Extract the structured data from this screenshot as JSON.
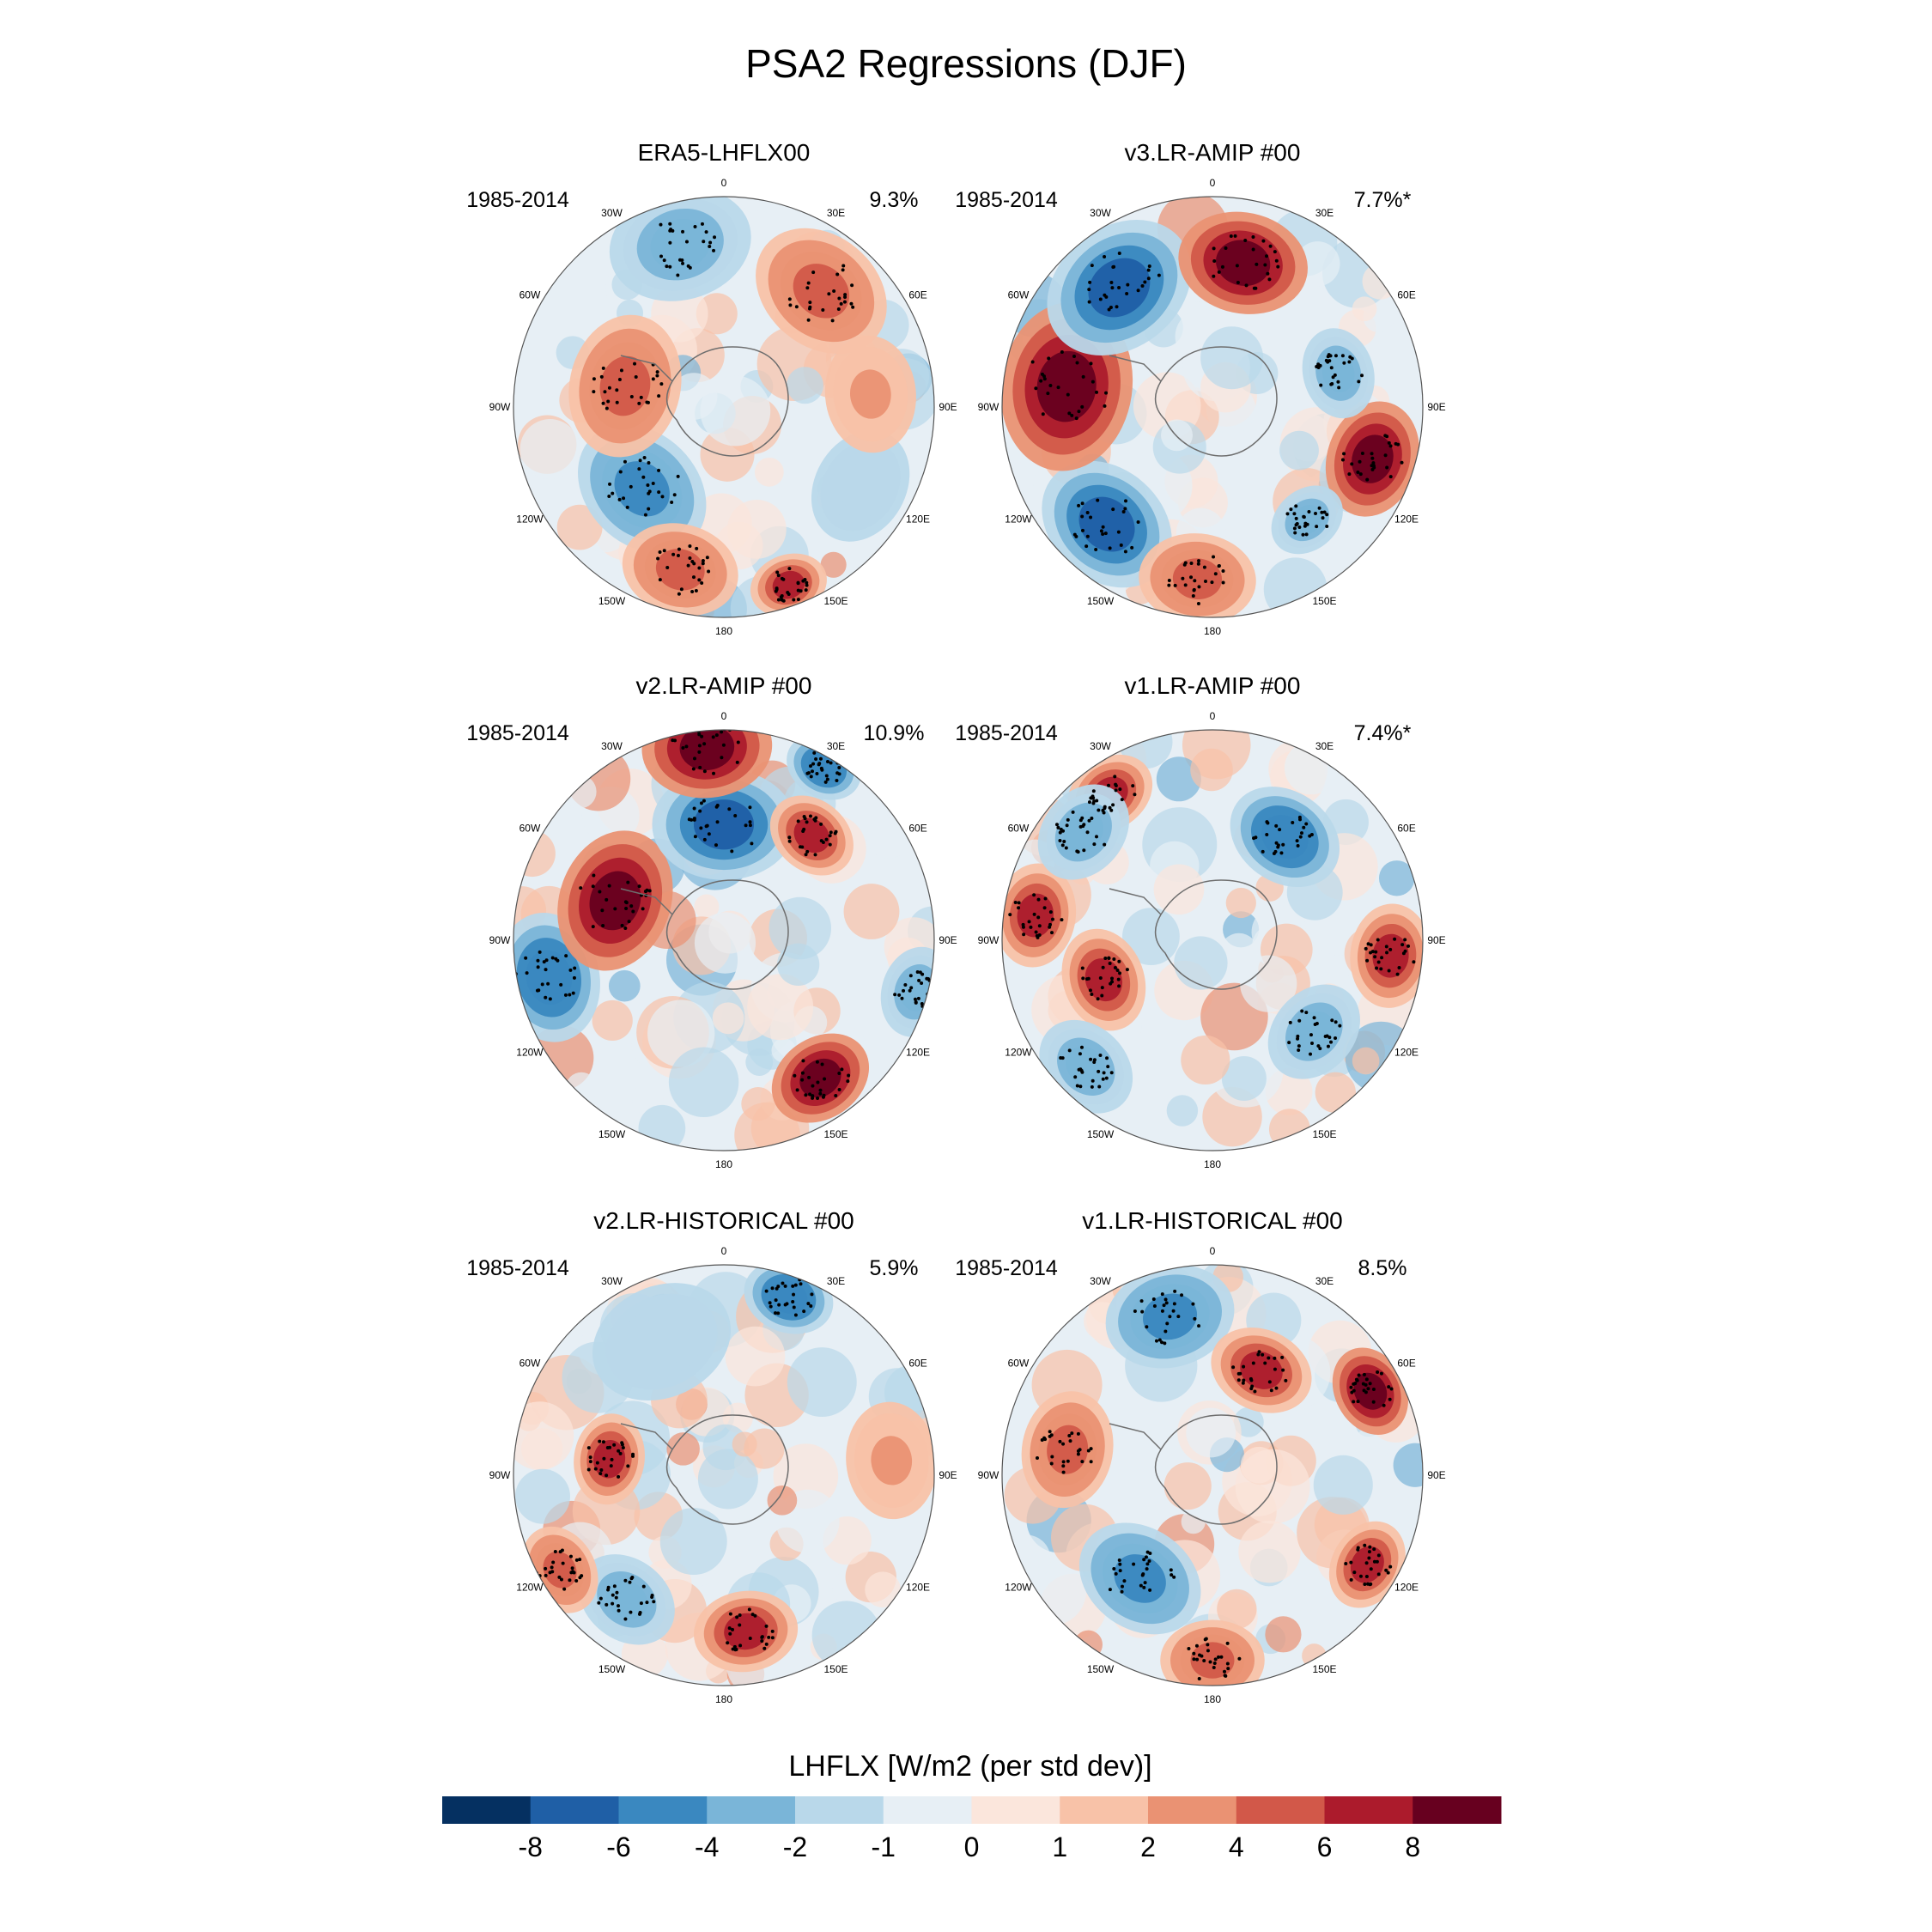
{
  "figure": {
    "title": "PSA2 Regressions (DJF)"
  },
  "colors": {
    "levels": [
      "#053061",
      "#1f5fa6",
      "#3a88c0",
      "#7ab5d8",
      "#b9d8ea",
      "#e7eff5",
      "#fbe6dc",
      "#f8c2a8",
      "#ea9273",
      "#d25849",
      "#ac1b2c",
      "#67001f"
    ],
    "outline": "#555555",
    "coast": "#6e6e6e",
    "stipple": "#000000"
  },
  "lon_labels": [
    "0",
    "30E",
    "60E",
    "90E",
    "120E",
    "150E",
    "180",
    "150W",
    "120W",
    "90W",
    "60W",
    "30W"
  ],
  "panels": [
    {
      "title": "ERA5-LHFLX00",
      "period": "1985-2014",
      "variance": "9.3%",
      "anomalies": [
        {
          "lon": 315,
          "r": 0.55,
          "value": -5,
          "size": 0.22
        },
        {
          "lon": 258,
          "r": 0.48,
          "value": 5,
          "size": 0.22
        },
        {
          "lon": 195,
          "r": 0.8,
          "value": -4,
          "size": 0.22
        },
        {
          "lon": 140,
          "r": 0.72,
          "value": 4,
          "size": 0.22
        },
        {
          "lon": 20,
          "r": 0.9,
          "value": 6,
          "size": 0.12
        },
        {
          "lon": 345,
          "r": 0.8,
          "value": 4,
          "size": 0.18
        },
        {
          "lon": 60,
          "r": 0.75,
          "value": -2,
          "size": 0.18
        },
        {
          "lon": 95,
          "r": 0.7,
          "value": 2,
          "size": 0.18
        }
      ]
    },
    {
      "title": "v3.LR-AMIP  #00",
      "period": "1985-2014",
      "variance": "7.7%*",
      "anomalies": [
        {
          "lon": 318,
          "r": 0.75,
          "value": -8,
          "size": 0.22
        },
        {
          "lon": 262,
          "r": 0.7,
          "value": 8,
          "size": 0.26
        },
        {
          "lon": 218,
          "r": 0.72,
          "value": -8,
          "size": 0.24
        },
        {
          "lon": 168,
          "r": 0.7,
          "value": 8,
          "size": 0.2
        },
        {
          "lon": 72,
          "r": 0.8,
          "value": 8,
          "size": 0.18
        },
        {
          "lon": 105,
          "r": 0.62,
          "value": -4,
          "size": 0.14
        },
        {
          "lon": 40,
          "r": 0.7,
          "value": -4,
          "size": 0.12
        },
        {
          "lon": 355,
          "r": 0.82,
          "value": 4,
          "size": 0.18
        }
      ]
    },
    {
      "title": "v2.LR-AMIP  #00",
      "period": "1985-2014",
      "variance": "10.9%",
      "anomalies": [
        {
          "lon": 282,
          "r": 0.85,
          "value": -6,
          "size": 0.2
        },
        {
          "lon": 250,
          "r": 0.55,
          "value": 8,
          "size": 0.22
        },
        {
          "lon": 180,
          "r": 0.55,
          "value": -8,
          "size": 0.22
        },
        {
          "lon": 185,
          "r": 0.92,
          "value": 8,
          "size": 0.2
        },
        {
          "lon": 140,
          "r": 0.65,
          "value": 6,
          "size": 0.14
        },
        {
          "lon": 150,
          "r": 0.95,
          "value": -6,
          "size": 0.12
        },
        {
          "lon": 35,
          "r": 0.8,
          "value": 8,
          "size": 0.16
        },
        {
          "lon": 75,
          "r": 0.95,
          "value": -4,
          "size": 0.14
        }
      ]
    },
    {
      "title": "v1.LR-AMIP  #00",
      "period": "1985-2014",
      "variance": "7.4%*",
      "anomalies": [
        {
          "lon": 290,
          "r": 0.55,
          "value": 6,
          "size": 0.16
        },
        {
          "lon": 262,
          "r": 0.85,
          "value": 6,
          "size": 0.16
        },
        {
          "lon": 215,
          "r": 0.85,
          "value": 6,
          "size": 0.14
        },
        {
          "lon": 145,
          "r": 0.6,
          "value": -6,
          "size": 0.18
        },
        {
          "lon": 48,
          "r": 0.65,
          "value": -4,
          "size": 0.16
        },
        {
          "lon": 85,
          "r": 0.85,
          "value": 6,
          "size": 0.16
        },
        {
          "lon": 315,
          "r": 0.85,
          "value": -4,
          "size": 0.16
        },
        {
          "lon": 230,
          "r": 0.8,
          "value": -4,
          "size": 0.16
        }
      ]
    },
    {
      "title": "v2.LR-HISTORICAL  #00",
      "period": "1985-2014",
      "variance": "5.9%",
      "anomalies": [
        {
          "lon": 8,
          "r": 0.75,
          "value": 6,
          "size": 0.16
        },
        {
          "lon": 322,
          "r": 0.75,
          "value": -4,
          "size": 0.16
        },
        {
          "lon": 262,
          "r": 0.55,
          "value": 6,
          "size": 0.14
        },
        {
          "lon": 160,
          "r": 0.9,
          "value": -6,
          "size": 0.14
        },
        {
          "lon": 205,
          "r": 0.7,
          "value": -2,
          "size": 0.22
        },
        {
          "lon": 95,
          "r": 0.8,
          "value": 2,
          "size": 0.18
        },
        {
          "lon": 300,
          "r": 0.9,
          "value": 4,
          "size": 0.14
        }
      ]
    },
    {
      "title": "v1.LR-HISTORICAL  #00",
      "period": "1985-2014",
      "variance": "8.5%",
      "anomalies": [
        {
          "lon": 325,
          "r": 0.6,
          "value": -5,
          "size": 0.2
        },
        {
          "lon": 195,
          "r": 0.78,
          "value": -5,
          "size": 0.2
        },
        {
          "lon": 155,
          "r": 0.55,
          "value": 6,
          "size": 0.16
        },
        {
          "lon": 118,
          "r": 0.85,
          "value": 8,
          "size": 0.14
        },
        {
          "lon": 60,
          "r": 0.85,
          "value": 6,
          "size": 0.14
        },
        {
          "lon": 0,
          "r": 0.88,
          "value": 4,
          "size": 0.16
        },
        {
          "lon": 260,
          "r": 0.7,
          "value": 4,
          "size": 0.18
        }
      ]
    }
  ],
  "colorbar": {
    "title": "LHFLX [W/m2 (per std dev)]",
    "ticks": [
      "-8",
      "-6",
      "-4",
      "-2",
      "-1",
      "0",
      "1",
      "2",
      "4",
      "6",
      "8"
    ]
  }
}
